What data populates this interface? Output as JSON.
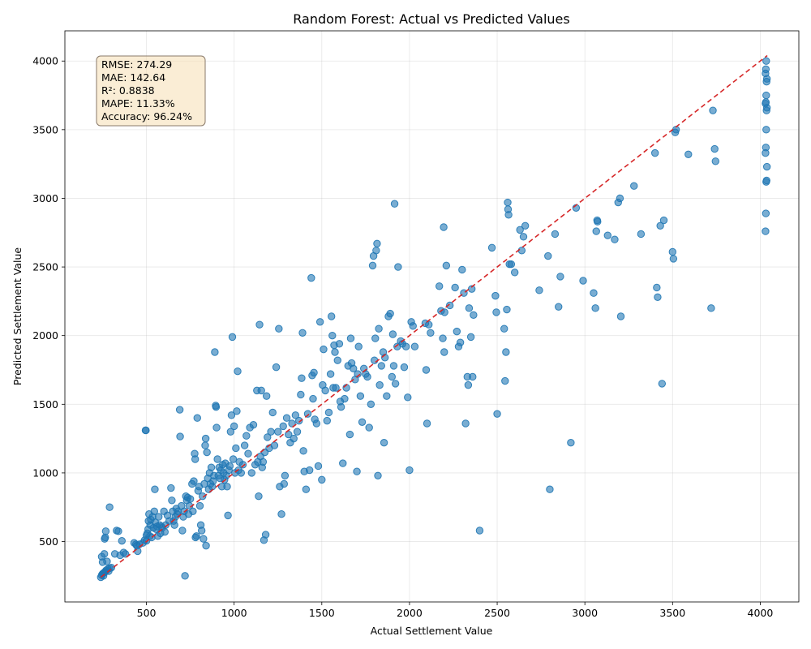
{
  "chart_data": {
    "type": "scatter",
    "title": "Random Forest: Actual vs Predicted Values",
    "xlabel": "Actual Settlement Value",
    "ylabel": "Predicted Settlement Value",
    "xlim": [
      35,
      4220
    ],
    "ylim": [
      60,
      4220
    ],
    "xticks": [
      500,
      1000,
      1500,
      2000,
      2500,
      3000,
      3500,
      4000
    ],
    "yticks": [
      500,
      1000,
      1500,
      2000,
      2500,
      3000,
      3500,
      4000
    ],
    "grid": true,
    "ideal_line": {
      "from": [
        240,
        240
      ],
      "to": [
        4040,
        4040
      ],
      "style": "dashed",
      "color": "#d62728"
    },
    "point_color": "#1f77b4",
    "stats": [
      "RMSE: 274.29",
      "MAE: 142.64",
      "R²: 0.8838",
      "MAPE: 11.33%",
      "Accuracy: 96.24%"
    ],
    "stats_placement": "top-left",
    "points": [
      [
        240,
        240
      ],
      [
        245,
        255
      ],
      [
        250,
        265
      ],
      [
        255,
        250
      ],
      [
        260,
        275
      ],
      [
        265,
        280
      ],
      [
        270,
        290
      ],
      [
        280,
        300
      ],
      [
        290,
        305
      ],
      [
        300,
        310
      ],
      [
        245,
        390
      ],
      [
        250,
        350
      ],
      [
        255,
        270
      ],
      [
        260,
        410
      ],
      [
        262,
        520
      ],
      [
        265,
        530
      ],
      [
        268,
        575
      ],
      [
        275,
        355
      ],
      [
        285,
        285
      ],
      [
        290,
        750
      ],
      [
        320,
        410
      ],
      [
        330,
        580
      ],
      [
        340,
        575
      ],
      [
        350,
        400
      ],
      [
        360,
        505
      ],
      [
        370,
        420
      ],
      [
        380,
        410
      ],
      [
        430,
        490
      ],
      [
        440,
        480
      ],
      [
        445,
        470
      ],
      [
        450,
        430
      ],
      [
        460,
        480
      ],
      [
        480,
        490
      ],
      [
        490,
        510
      ],
      [
        495,
        1310
      ],
      [
        497,
        1310
      ],
      [
        500,
        505
      ],
      [
        500,
        545
      ],
      [
        505,
        560
      ],
      [
        510,
        590
      ],
      [
        512,
        650
      ],
      [
        515,
        700
      ],
      [
        520,
        540
      ],
      [
        522,
        620
      ],
      [
        525,
        660
      ],
      [
        530,
        530
      ],
      [
        535,
        680
      ],
      [
        540,
        600
      ],
      [
        545,
        720
      ],
      [
        548,
        880
      ],
      [
        550,
        640
      ],
      [
        555,
        590
      ],
      [
        560,
        610
      ],
      [
        565,
        540
      ],
      [
        570,
        680
      ],
      [
        575,
        620
      ],
      [
        580,
        560
      ],
      [
        585,
        610
      ],
      [
        590,
        600
      ],
      [
        600,
        720
      ],
      [
        605,
        570
      ],
      [
        610,
        620
      ],
      [
        620,
        690
      ],
      [
        630,
        650
      ],
      [
        640,
        890
      ],
      [
        645,
        800
      ],
      [
        650,
        720
      ],
      [
        655,
        650
      ],
      [
        660,
        620
      ],
      [
        665,
        680
      ],
      [
        670,
        740
      ],
      [
        675,
        700
      ],
      [
        680,
        720
      ],
      [
        690,
        1460
      ],
      [
        692,
        1265
      ],
      [
        700,
        760
      ],
      [
        705,
        580
      ],
      [
        710,
        680
      ],
      [
        715,
        720
      ],
      [
        720,
        250
      ],
      [
        725,
        830
      ],
      [
        730,
        800
      ],
      [
        735,
        820
      ],
      [
        740,
        700
      ],
      [
        745,
        760
      ],
      [
        750,
        810
      ],
      [
        760,
        920
      ],
      [
        765,
        720
      ],
      [
        770,
        940
      ],
      [
        775,
        1140
      ],
      [
        778,
        1100
      ],
      [
        780,
        530
      ],
      [
        785,
        540
      ],
      [
        790,
        1400
      ],
      [
        795,
        870
      ],
      [
        800,
        900
      ],
      [
        805,
        760
      ],
      [
        810,
        620
      ],
      [
        815,
        580
      ],
      [
        820,
        830
      ],
      [
        825,
        520
      ],
      [
        830,
        920
      ],
      [
        835,
        1200
      ],
      [
        838,
        1250
      ],
      [
        840,
        470
      ],
      [
        845,
        1150
      ],
      [
        850,
        960
      ],
      [
        855,
        880
      ],
      [
        860,
        1000
      ],
      [
        865,
        920
      ],
      [
        870,
        1040
      ],
      [
        875,
        900
      ],
      [
        880,
        940
      ],
      [
        885,
        980
      ],
      [
        890,
        1880
      ],
      [
        895,
        1490
      ],
      [
        897,
        1480
      ],
      [
        900,
        1330
      ],
      [
        905,
        1100
      ],
      [
        910,
        980
      ],
      [
        915,
        1040
      ],
      [
        920,
        960
      ],
      [
        925,
        1020
      ],
      [
        930,
        900
      ],
      [
        935,
        1060
      ],
      [
        940,
        1000
      ],
      [
        945,
        950
      ],
      [
        950,
        1070
      ],
      [
        955,
        980
      ],
      [
        960,
        900
      ],
      [
        965,
        690
      ],
      [
        970,
        1020
      ],
      [
        975,
        1050
      ],
      [
        980,
        1300
      ],
      [
        985,
        1420
      ],
      [
        990,
        1990
      ],
      [
        995,
        1100
      ],
      [
        1000,
        1340
      ],
      [
        1005,
        1000
      ],
      [
        1010,
        1180
      ],
      [
        1015,
        1450
      ],
      [
        1020,
        1740
      ],
      [
        1025,
        1020
      ],
      [
        1030,
        1080
      ],
      [
        1040,
        1000
      ],
      [
        1050,
        1060
      ],
      [
        1060,
        1200
      ],
      [
        1070,
        1270
      ],
      [
        1080,
        1140
      ],
      [
        1090,
        1330
      ],
      [
        1100,
        1000
      ],
      [
        1110,
        1350
      ],
      [
        1120,
        1060
      ],
      [
        1130,
        1600
      ],
      [
        1135,
        1080
      ],
      [
        1140,
        830
      ],
      [
        1145,
        2080
      ],
      [
        1150,
        1120
      ],
      [
        1155,
        1600
      ],
      [
        1160,
        1040
      ],
      [
        1165,
        1080
      ],
      [
        1170,
        510
      ],
      [
        1175,
        1150
      ],
      [
        1180,
        550
      ],
      [
        1185,
        1560
      ],
      [
        1190,
        1260
      ],
      [
        1200,
        1180
      ],
      [
        1210,
        1300
      ],
      [
        1220,
        1440
      ],
      [
        1230,
        1200
      ],
      [
        1240,
        1770
      ],
      [
        1250,
        1300
      ],
      [
        1255,
        2050
      ],
      [
        1260,
        900
      ],
      [
        1270,
        700
      ],
      [
        1280,
        1340
      ],
      [
        1285,
        920
      ],
      [
        1290,
        980
      ],
      [
        1300,
        1400
      ],
      [
        1310,
        1280
      ],
      [
        1320,
        1220
      ],
      [
        1330,
        1360
      ],
      [
        1340,
        1250
      ],
      [
        1350,
        1420
      ],
      [
        1360,
        1300
      ],
      [
        1370,
        1380
      ],
      [
        1380,
        1570
      ],
      [
        1385,
        1690
      ],
      [
        1390,
        2020
      ],
      [
        1395,
        1160
      ],
      [
        1400,
        1010
      ],
      [
        1410,
        880
      ],
      [
        1420,
        1430
      ],
      [
        1430,
        1020
      ],
      [
        1440,
        2420
      ],
      [
        1445,
        1710
      ],
      [
        1450,
        1540
      ],
      [
        1455,
        1730
      ],
      [
        1460,
        1390
      ],
      [
        1470,
        1360
      ],
      [
        1480,
        1050
      ],
      [
        1490,
        2100
      ],
      [
        1500,
        950
      ],
      [
        1505,
        1640
      ],
      [
        1510,
        1900
      ],
      [
        1520,
        1600
      ],
      [
        1530,
        1380
      ],
      [
        1540,
        1440
      ],
      [
        1550,
        1720
      ],
      [
        1555,
        2140
      ],
      [
        1560,
        2000
      ],
      [
        1565,
        1620
      ],
      [
        1570,
        1930
      ],
      [
        1575,
        1880
      ],
      [
        1580,
        1620
      ],
      [
        1590,
        1820
      ],
      [
        1600,
        1940
      ],
      [
        1605,
        1520
      ],
      [
        1610,
        1480
      ],
      [
        1620,
        1070
      ],
      [
        1630,
        1540
      ],
      [
        1640,
        1620
      ],
      [
        1650,
        1780
      ],
      [
        1660,
        1280
      ],
      [
        1665,
        1980
      ],
      [
        1670,
        1800
      ],
      [
        1680,
        1760
      ],
      [
        1690,
        1680
      ],
      [
        1700,
        1010
      ],
      [
        1705,
        1720
      ],
      [
        1710,
        1920
      ],
      [
        1720,
        1560
      ],
      [
        1730,
        1370
      ],
      [
        1740,
        1760
      ],
      [
        1750,
        1720
      ],
      [
        1760,
        1700
      ],
      [
        1770,
        1330
      ],
      [
        1780,
        1500
      ],
      [
        1790,
        2510
      ],
      [
        1795,
        2580
      ],
      [
        1800,
        1820
      ],
      [
        1805,
        1980
      ],
      [
        1810,
        2620
      ],
      [
        1815,
        2670
      ],
      [
        1820,
        980
      ],
      [
        1825,
        2050
      ],
      [
        1830,
        1640
      ],
      [
        1840,
        1780
      ],
      [
        1850,
        1880
      ],
      [
        1855,
        1220
      ],
      [
        1860,
        1840
      ],
      [
        1870,
        1560
      ],
      [
        1880,
        2140
      ],
      [
        1890,
        2160
      ],
      [
        1900,
        1700
      ],
      [
        1905,
        2010
      ],
      [
        1910,
        1780
      ],
      [
        1915,
        2960
      ],
      [
        1920,
        1650
      ],
      [
        1930,
        1920
      ],
      [
        1935,
        2500
      ],
      [
        1950,
        1960
      ],
      [
        1960,
        1940
      ],
      [
        1970,
        1770
      ],
      [
        1980,
        1920
      ],
      [
        1990,
        1550
      ],
      [
        2000,
        1020
      ],
      [
        2010,
        2100
      ],
      [
        2020,
        2070
      ],
      [
        2030,
        1920
      ],
      [
        2090,
        2090
      ],
      [
        2095,
        1750
      ],
      [
        2100,
        1360
      ],
      [
        2110,
        2080
      ],
      [
        2120,
        2020
      ],
      [
        2170,
        2360
      ],
      [
        2180,
        2180
      ],
      [
        2190,
        1980
      ],
      [
        2195,
        2790
      ],
      [
        2198,
        1880
      ],
      [
        2200,
        2170
      ],
      [
        2210,
        2510
      ],
      [
        2230,
        2220
      ],
      [
        2260,
        2350
      ],
      [
        2270,
        2030
      ],
      [
        2280,
        1920
      ],
      [
        2290,
        1950
      ],
      [
        2300,
        2480
      ],
      [
        2310,
        2310
      ],
      [
        2320,
        1360
      ],
      [
        2330,
        1700
      ],
      [
        2335,
        1640
      ],
      [
        2340,
        2200
      ],
      [
        2350,
        1990
      ],
      [
        2355,
        2340
      ],
      [
        2360,
        1700
      ],
      [
        2365,
        2150
      ],
      [
        2400,
        580
      ],
      [
        2470,
        2640
      ],
      [
        2490,
        2290
      ],
      [
        2495,
        2170
      ],
      [
        2500,
        1430
      ],
      [
        2540,
        2050
      ],
      [
        2545,
        1670
      ],
      [
        2550,
        1880
      ],
      [
        2555,
        2190
      ],
      [
        2560,
        2970
      ],
      [
        2562,
        2920
      ],
      [
        2565,
        2880
      ],
      [
        2570,
        2520
      ],
      [
        2580,
        2520
      ],
      [
        2600,
        2460
      ],
      [
        2630,
        2770
      ],
      [
        2640,
        2620
      ],
      [
        2650,
        2720
      ],
      [
        2660,
        2800
      ],
      [
        2740,
        2330
      ],
      [
        2790,
        2580
      ],
      [
        2800,
        880
      ],
      [
        2830,
        2740
      ],
      [
        2850,
        2210
      ],
      [
        2860,
        2430
      ],
      [
        2920,
        1220
      ],
      [
        2950,
        2930
      ],
      [
        2990,
        2400
      ],
      [
        3050,
        2310
      ],
      [
        3060,
        2200
      ],
      [
        3065,
        2760
      ],
      [
        3070,
        2840
      ],
      [
        3072,
        2830
      ],
      [
        3130,
        2730
      ],
      [
        3170,
        2700
      ],
      [
        3190,
        2970
      ],
      [
        3200,
        3000
      ],
      [
        3205,
        2140
      ],
      [
        3280,
        3090
      ],
      [
        3320,
        2740
      ],
      [
        3400,
        3330
      ],
      [
        3410,
        2350
      ],
      [
        3415,
        2280
      ],
      [
        3430,
        2800
      ],
      [
        3440,
        1650
      ],
      [
        3450,
        2840
      ],
      [
        3500,
        2610
      ],
      [
        3505,
        2560
      ],
      [
        3515,
        3480
      ],
      [
        3520,
        3500
      ],
      [
        3590,
        3320
      ],
      [
        3720,
        2200
      ],
      [
        3730,
        3640
      ],
      [
        3740,
        3360
      ],
      [
        3745,
        3270
      ],
      [
        4030,
        2760
      ],
      [
        4032,
        2890
      ],
      [
        4034,
        3120
      ],
      [
        4036,
        3130
      ],
      [
        4038,
        3230
      ],
      [
        4030,
        3330
      ],
      [
        4032,
        3370
      ],
      [
        4034,
        3500
      ],
      [
        4036,
        3640
      ],
      [
        4038,
        3660
      ],
      [
        4030,
        3690
      ],
      [
        4032,
        3700
      ],
      [
        4034,
        3750
      ],
      [
        4036,
        3850
      ],
      [
        4038,
        3870
      ],
      [
        4030,
        3910
      ],
      [
        4032,
        3940
      ],
      [
        4034,
        4000
      ]
    ]
  }
}
